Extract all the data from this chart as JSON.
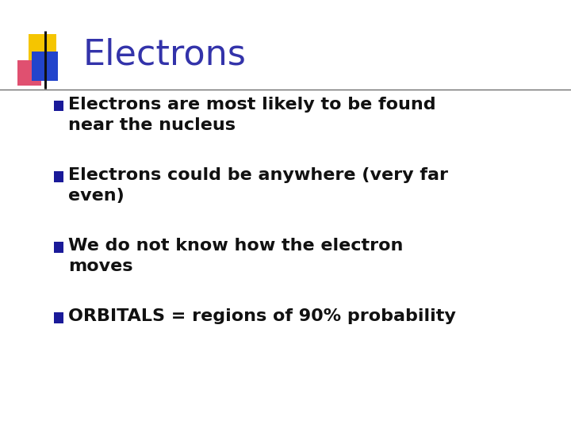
{
  "title": "Electrons",
  "title_color": "#3333aa",
  "title_fontsize": 32,
  "background_color": "#ffffff",
  "bullet_color": "#111111",
  "bullet_fontsize": 16,
  "bullets": [
    "Electrons are most likely to be found\nnear the nucleus",
    "Electrons could be anywhere (very far\neven)",
    "We do not know how the electron\nmoves",
    "ORBITALS = regions of 90% probability"
  ],
  "bullet_square_color": "#1a1a99",
  "square_yellow_color": "#f5c500",
  "square_pink_color": "#e05070",
  "square_blue_color": "#2244cc"
}
